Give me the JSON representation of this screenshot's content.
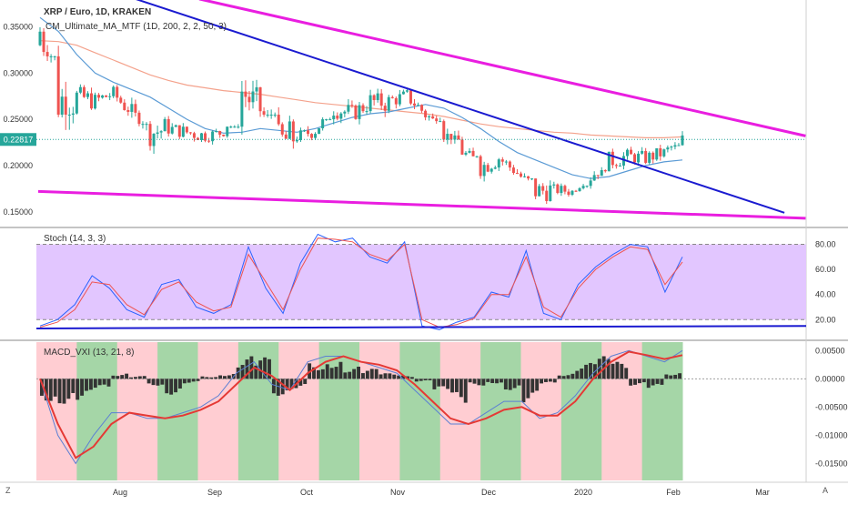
{
  "header": {
    "symbol_title": "XRP / Euro, 1D, KRAKEN",
    "ma_indicator": "CM_Ultimate_MA_MTF (1D, 200, 2, 2, 50, 3)",
    "current_price": "0.22817"
  },
  "corner_left": "Z",
  "corner_right": "A",
  "colors": {
    "up": "#26a69a",
    "down": "#ef5350",
    "ma_fast": "#5b9bd5",
    "ma_slow": "#f4a28c",
    "trend_magenta": "#e91ee0",
    "trend_blue": "#1a1ad0",
    "stoch_band": "#e2c6ff",
    "macd_green": "#a5d6a7",
    "macd_red": "#ffcdd2"
  },
  "chart_data": [
    {
      "type": "candlestick",
      "title": "XRP / Euro, 1D, KRAKEN",
      "x_ticks": [
        "Aug",
        "Sep",
        "Oct",
        "Nov",
        "Dec",
        "2020",
        "Feb",
        "Mar"
      ],
      "y_ticks": [
        "0.35000",
        "0.30000",
        "0.25000",
        "0.20000",
        "0.15000"
      ],
      "ylim": [
        0.135,
        0.375
      ],
      "last_value": 0.22817,
      "ohlc_weekly": [
        [
          0.33,
          0.365,
          0.318,
          0.345
        ],
        [
          0.345,
          0.35,
          0.255,
          0.27
        ],
        [
          0.27,
          0.295,
          0.258,
          0.275
        ],
        [
          0.275,
          0.29,
          0.262,
          0.27
        ],
        [
          0.27,
          0.285,
          0.258,
          0.278
        ],
        [
          0.278,
          0.286,
          0.245,
          0.255
        ],
        [
          0.255,
          0.262,
          0.215,
          0.235
        ],
        [
          0.235,
          0.246,
          0.22,
          0.24
        ],
        [
          0.24,
          0.25,
          0.222,
          0.236
        ],
        [
          0.236,
          0.248,
          0.226,
          0.232
        ],
        [
          0.232,
          0.242,
          0.225,
          0.236
        ],
        [
          0.236,
          0.298,
          0.228,
          0.28
        ],
        [
          0.28,
          0.29,
          0.255,
          0.26
        ],
        [
          0.26,
          0.262,
          0.195,
          0.225
        ],
        [
          0.225,
          0.238,
          0.21,
          0.232
        ],
        [
          0.232,
          0.25,
          0.225,
          0.238
        ],
        [
          0.238,
          0.27,
          0.234,
          0.262
        ],
        [
          0.262,
          0.278,
          0.245,
          0.256
        ],
        [
          0.256,
          0.278,
          0.232,
          0.268
        ],
        [
          0.268,
          0.282,
          0.255,
          0.27
        ],
        [
          0.27,
          0.285,
          0.258,
          0.275
        ],
        [
          0.275,
          0.282,
          0.248,
          0.256
        ],
        [
          0.256,
          0.26,
          0.228,
          0.235
        ],
        [
          0.235,
          0.238,
          0.21,
          0.215
        ],
        [
          0.215,
          0.22,
          0.185,
          0.198
        ],
        [
          0.198,
          0.218,
          0.192,
          0.208
        ],
        [
          0.208,
          0.212,
          0.186,
          0.192
        ],
        [
          0.192,
          0.2,
          0.16,
          0.172
        ],
        [
          0.172,
          0.182,
          0.162,
          0.174
        ],
        [
          0.174,
          0.178,
          0.166,
          0.172
        ],
        [
          0.172,
          0.195,
          0.168,
          0.188
        ],
        [
          0.188,
          0.215,
          0.182,
          0.205
        ],
        [
          0.205,
          0.224,
          0.198,
          0.21
        ],
        [
          0.21,
          0.224,
          0.198,
          0.208
        ],
        [
          0.208,
          0.222,
          0.2,
          0.214
        ],
        [
          0.214,
          0.234,
          0.208,
          0.228
        ]
      ],
      "ma_fast": [
        0.36,
        0.345,
        0.32,
        0.3,
        0.29,
        0.282,
        0.274,
        0.262,
        0.25,
        0.24,
        0.235,
        0.236,
        0.24,
        0.238,
        0.236,
        0.24,
        0.246,
        0.252,
        0.256,
        0.258,
        0.262,
        0.266,
        0.262,
        0.252,
        0.24,
        0.226,
        0.214,
        0.206,
        0.198,
        0.19,
        0.186,
        0.188,
        0.194,
        0.2,
        0.204,
        0.206
      ],
      "ma_slow": [
        0.335,
        0.334,
        0.33,
        0.322,
        0.314,
        0.306,
        0.298,
        0.292,
        0.287,
        0.284,
        0.281,
        0.279,
        0.277,
        0.274,
        0.271,
        0.268,
        0.266,
        0.264,
        0.262,
        0.26,
        0.258,
        0.256,
        0.253,
        0.249,
        0.245,
        0.242,
        0.24,
        0.238,
        0.236,
        0.235,
        0.233,
        0.232,
        0.231,
        0.23,
        0.23,
        0.231
      ],
      "trendlines": [
        {
          "color": "magenta",
          "from": [
            0.235,
            0.38
          ],
          "to": [
            0.95,
            0.232
          ]
        },
        {
          "color": "magenta",
          "from": [
            0.045,
            0.172
          ],
          "to": [
            0.95,
            0.143
          ]
        },
        {
          "color": "blue",
          "from": [
            0.16,
            0.38
          ],
          "to": [
            0.925,
            0.149
          ]
        }
      ]
    },
    {
      "type": "line",
      "title": "Stoch (14, 3, 3)",
      "y_ticks": [
        "80.00",
        "60.00",
        "40.00",
        "20.00"
      ],
      "ylim": [
        5,
        92
      ],
      "band": [
        20,
        80
      ],
      "series": [
        {
          "color": "blue",
          "values": [
            15,
            20,
            32,
            55,
            45,
            28,
            22,
            48,
            52,
            30,
            25,
            32,
            78,
            45,
            25,
            65,
            88,
            82,
            85,
            70,
            65,
            82,
            15,
            12,
            18,
            22,
            42,
            38,
            75,
            25,
            20,
            48,
            62,
            72,
            80,
            78,
            42,
            70
          ]
        },
        {
          "color": "red",
          "values": [
            14,
            18,
            28,
            50,
            48,
            32,
            24,
            44,
            50,
            34,
            27,
            30,
            72,
            50,
            28,
            60,
            85,
            84,
            82,
            72,
            67,
            80,
            20,
            14,
            16,
            21,
            40,
            40,
            70,
            30,
            22,
            45,
            60,
            70,
            78,
            76,
            48,
            66
          ]
        }
      ],
      "trendline": {
        "color": "blue",
        "from": [
          13
        ],
        "to": [
          15
        ]
      }
    },
    {
      "type": "line",
      "title": "MACD_VXI (13, 21, 8)",
      "y_ticks": [
        "0.00500",
        "0.00000",
        "-0.00500",
        "-0.01000",
        "-0.01500"
      ],
      "ylim": [
        -0.018,
        0.0065
      ],
      "histogram": [
        -0.004,
        -0.0045,
        -0.0038,
        -0.002,
        0.001,
        0.0005,
        -0.0012,
        -0.0028,
        -0.0008,
        0.0005,
        0.001,
        0.004,
        0.0038,
        -0.003,
        -0.0018,
        0.003,
        0.0038,
        0.0022,
        0.0018,
        0.001,
        0.0006,
        -0.0005,
        -0.0025,
        -0.0045,
        -0.0012,
        -0.0008,
        -0.002,
        -0.0042,
        -0.001,
        0.001,
        0.0028,
        0.004,
        0.003,
        -0.0012,
        -0.0018,
        0.0012
      ],
      "macd": [
        0.0,
        -0.01,
        -0.015,
        -0.01,
        -0.006,
        -0.006,
        -0.007,
        -0.007,
        -0.006,
        -0.005,
        -0.003,
        0.001,
        0.003,
        -0.001,
        -0.002,
        0.003,
        0.004,
        0.004,
        0.003,
        0.002,
        0.001,
        -0.002,
        -0.005,
        -0.008,
        -0.008,
        -0.006,
        -0.004,
        -0.004,
        -0.007,
        -0.006,
        -0.003,
        0.001,
        0.004,
        0.005,
        0.004,
        0.003,
        0.005
      ],
      "signal": [
        0.0,
        -0.008,
        -0.014,
        -0.012,
        -0.008,
        -0.006,
        -0.0065,
        -0.007,
        -0.0065,
        -0.0055,
        -0.004,
        -0.001,
        0.002,
        0.0005,
        -0.002,
        0.001,
        0.003,
        0.004,
        0.003,
        0.0025,
        0.0015,
        -0.001,
        -0.004,
        -0.007,
        -0.008,
        -0.007,
        -0.0055,
        -0.005,
        -0.0065,
        -0.0065,
        -0.004,
        0.0,
        0.003,
        0.0048,
        0.0042,
        0.0035,
        0.0042
      ],
      "regions": [
        "red",
        "green",
        "red",
        "green",
        "red",
        "green",
        "red",
        "green",
        "red",
        "green",
        "red",
        "green",
        "red",
        "green",
        "red",
        "green"
      ]
    }
  ]
}
